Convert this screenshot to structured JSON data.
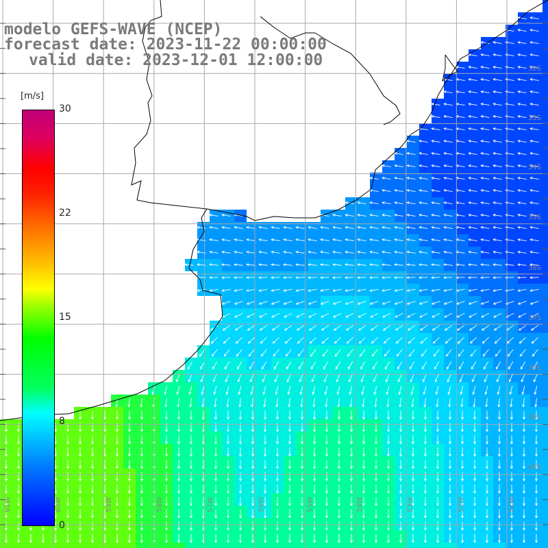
{
  "title": {
    "line1": "modelo GEFS-WAVE (NCEP)",
    "line2": "forecast date: 2023-11-22 00:00:00",
    "line3": "valid date: 2023-12-01 12:00:00"
  },
  "colorbar": {
    "unit": "[m/s]",
    "ticks": [
      "30",
      "22",
      "15",
      "8",
      "0"
    ],
    "tick_values": [
      30,
      22,
      15,
      8,
      0
    ],
    "min": 0,
    "max": 30,
    "colors": [
      "#0000ff",
      "#00c0ff",
      "#00ffff",
      "#00ff00",
      "#ffff00",
      "#ff8000",
      "#ff0000",
      "#c0007a"
    ]
  },
  "map": {
    "latitude_labels": [
      "32S",
      "33S",
      "34S",
      "35S",
      "36S",
      "37S",
      "38S",
      "39S",
      "40S"
    ],
    "longitude_labels": [
      "61W",
      "60W",
      "59W",
      "58W",
      "57W",
      "56W",
      "55W",
      "54W",
      "53W",
      "52W",
      "51W"
    ],
    "colors": {
      "land": "#ffffff",
      "grid": "#a8a8a8",
      "coast": "#000000",
      "arrow": "#ffffff"
    }
  }
}
